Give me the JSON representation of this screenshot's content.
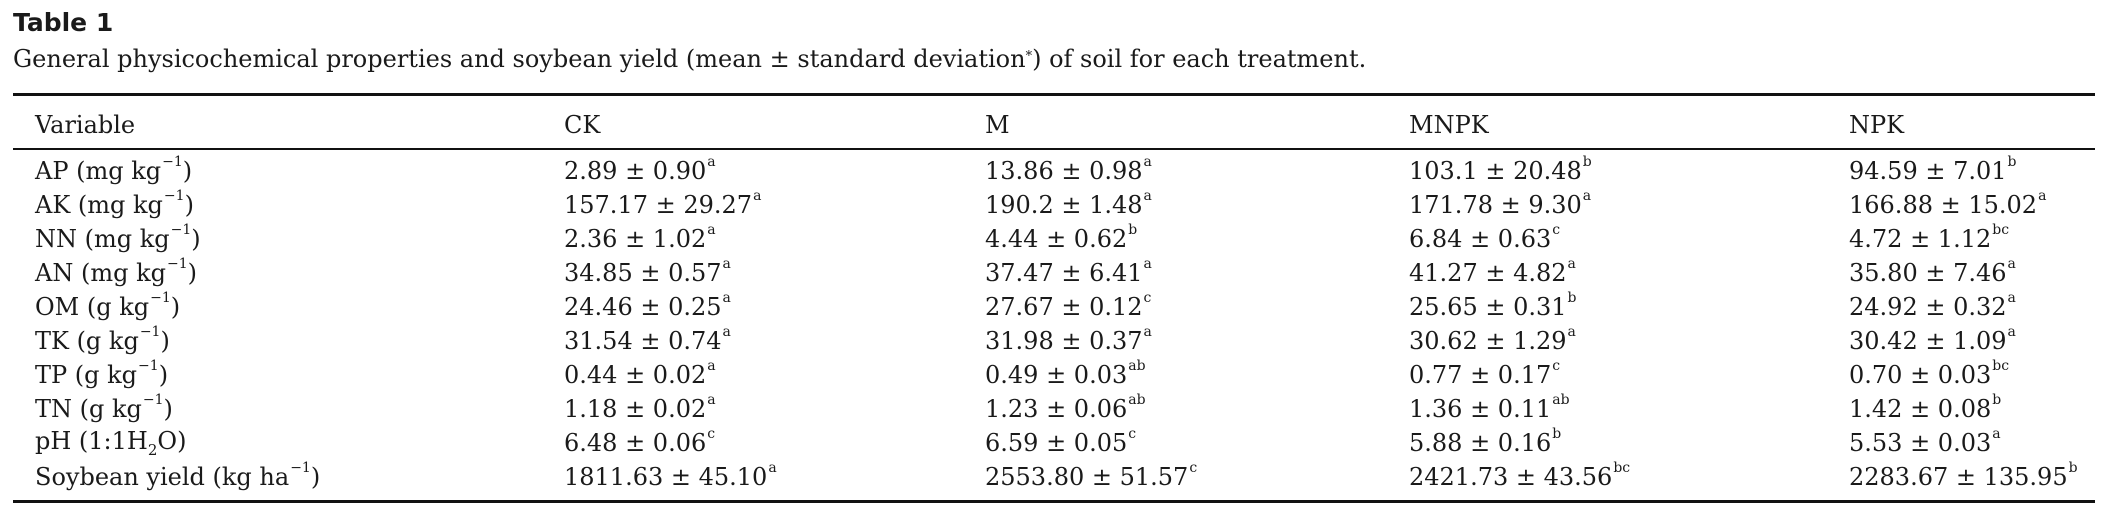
{
  "table": {
    "label": "Table 1",
    "caption_before": "General physicochemical properties and soybean yield (mean ± standard deviation",
    "caption_marker": "*",
    "caption_after": ") of soil for each treatment.",
    "headers": [
      "Variable",
      "CK",
      "M",
      "MNPK",
      "NPK"
    ],
    "rows": [
      {
        "variable": "AP (mg kg",
        "var_sup": "−1",
        "var_end": ")",
        "cells": [
          {
            "value": "2.89 ± 0.90",
            "sig": "a"
          },
          {
            "value": "13.86 ± 0.98",
            "sig": "a"
          },
          {
            "value": "103.1 ± 20.48",
            "sig": "b"
          },
          {
            "value": "94.59 ± 7.01",
            "sig": "b"
          }
        ]
      },
      {
        "variable": "AK (mg kg",
        "var_sup": "−1",
        "var_end": ")",
        "cells": [
          {
            "value": "157.17 ± 29.27",
            "sig": "a"
          },
          {
            "value": "190.2 ± 1.48",
            "sig": "a"
          },
          {
            "value": "171.78 ± 9.30",
            "sig": "a"
          },
          {
            "value": "166.88 ± 15.02",
            "sig": "a"
          }
        ]
      },
      {
        "variable": "NN (mg kg",
        "var_sup": "−1",
        "var_end": ")",
        "cells": [
          {
            "value": "2.36 ± 1.02",
            "sig": "a"
          },
          {
            "value": "4.44 ± 0.62",
            "sig": "b"
          },
          {
            "value": "6.84 ± 0.63",
            "sig": "c"
          },
          {
            "value": "4.72 ± 1.12",
            "sig": "bc"
          }
        ]
      },
      {
        "variable": "AN (mg kg",
        "var_sup": "−1",
        "var_end": ")",
        "cells": [
          {
            "value": "34.85 ± 0.57",
            "sig": "a"
          },
          {
            "value": "37.47 ± 6.41",
            "sig": "a"
          },
          {
            "value": "41.27 ± 4.82",
            "sig": "a"
          },
          {
            "value": "35.80 ± 7.46",
            "sig": "a"
          }
        ]
      },
      {
        "variable": "OM (g kg",
        "var_sup": "−1",
        "var_end": ")",
        "cells": [
          {
            "value": "24.46 ± 0.25",
            "sig": "a"
          },
          {
            "value": "27.67 ± 0.12",
            "sig": "c"
          },
          {
            "value": "25.65 ± 0.31",
            "sig": "b"
          },
          {
            "value": "24.92 ± 0.32",
            "sig": "a"
          }
        ]
      },
      {
        "variable": "TK (g kg",
        "var_sup": "−1",
        "var_end": ")",
        "cells": [
          {
            "value": "31.54 ± 0.74",
            "sig": "a"
          },
          {
            "value": "31.98 ± 0.37",
            "sig": "a"
          },
          {
            "value": "30.62 ± 1.29",
            "sig": "a"
          },
          {
            "value": "30.42 ± 1.09",
            "sig": "a"
          }
        ]
      },
      {
        "variable": "TP (g kg",
        "var_sup": "−1",
        "var_end": ")",
        "cells": [
          {
            "value": "0.44 ± 0.02",
            "sig": "a"
          },
          {
            "value": "0.49 ± 0.03",
            "sig": "ab"
          },
          {
            "value": "0.77 ± 0.17",
            "sig": "c"
          },
          {
            "value": "0.70 ± 0.03",
            "sig": "bc"
          }
        ]
      },
      {
        "variable": "TN (g kg",
        "var_sup": "−1",
        "var_end": ")",
        "cells": [
          {
            "value": "1.18 ± 0.02",
            "sig": "a"
          },
          {
            "value": "1.23 ± 0.06",
            "sig": "ab"
          },
          {
            "value": "1.36 ± 0.11",
            "sig": "ab"
          },
          {
            "value": "1.42 ± 0.08",
            "sig": "b"
          }
        ]
      },
      {
        "variable": "pH (1:1H",
        "var_sub": "2",
        "var_end": "O)",
        "cells": [
          {
            "value": "6.48 ± 0.06",
            "sig": "c"
          },
          {
            "value": "6.59 ± 0.05",
            "sig": "c"
          },
          {
            "value": "5.88 ± 0.16",
            "sig": "b"
          },
          {
            "value": "5.53 ± 0.03",
            "sig": "a"
          }
        ]
      },
      {
        "variable": "Soybean yield (kg ha",
        "var_sup": "−1",
        "var_end": ")",
        "cells": [
          {
            "value": "1811.63 ± 45.10",
            "sig": "a"
          },
          {
            "value": "2553.80 ± 51.57",
            "sig": "c"
          },
          {
            "value": "2421.73 ± 43.56",
            "sig": "bc"
          },
          {
            "value": "2283.67 ± 135.95",
            "sig": "b"
          }
        ]
      }
    ]
  }
}
